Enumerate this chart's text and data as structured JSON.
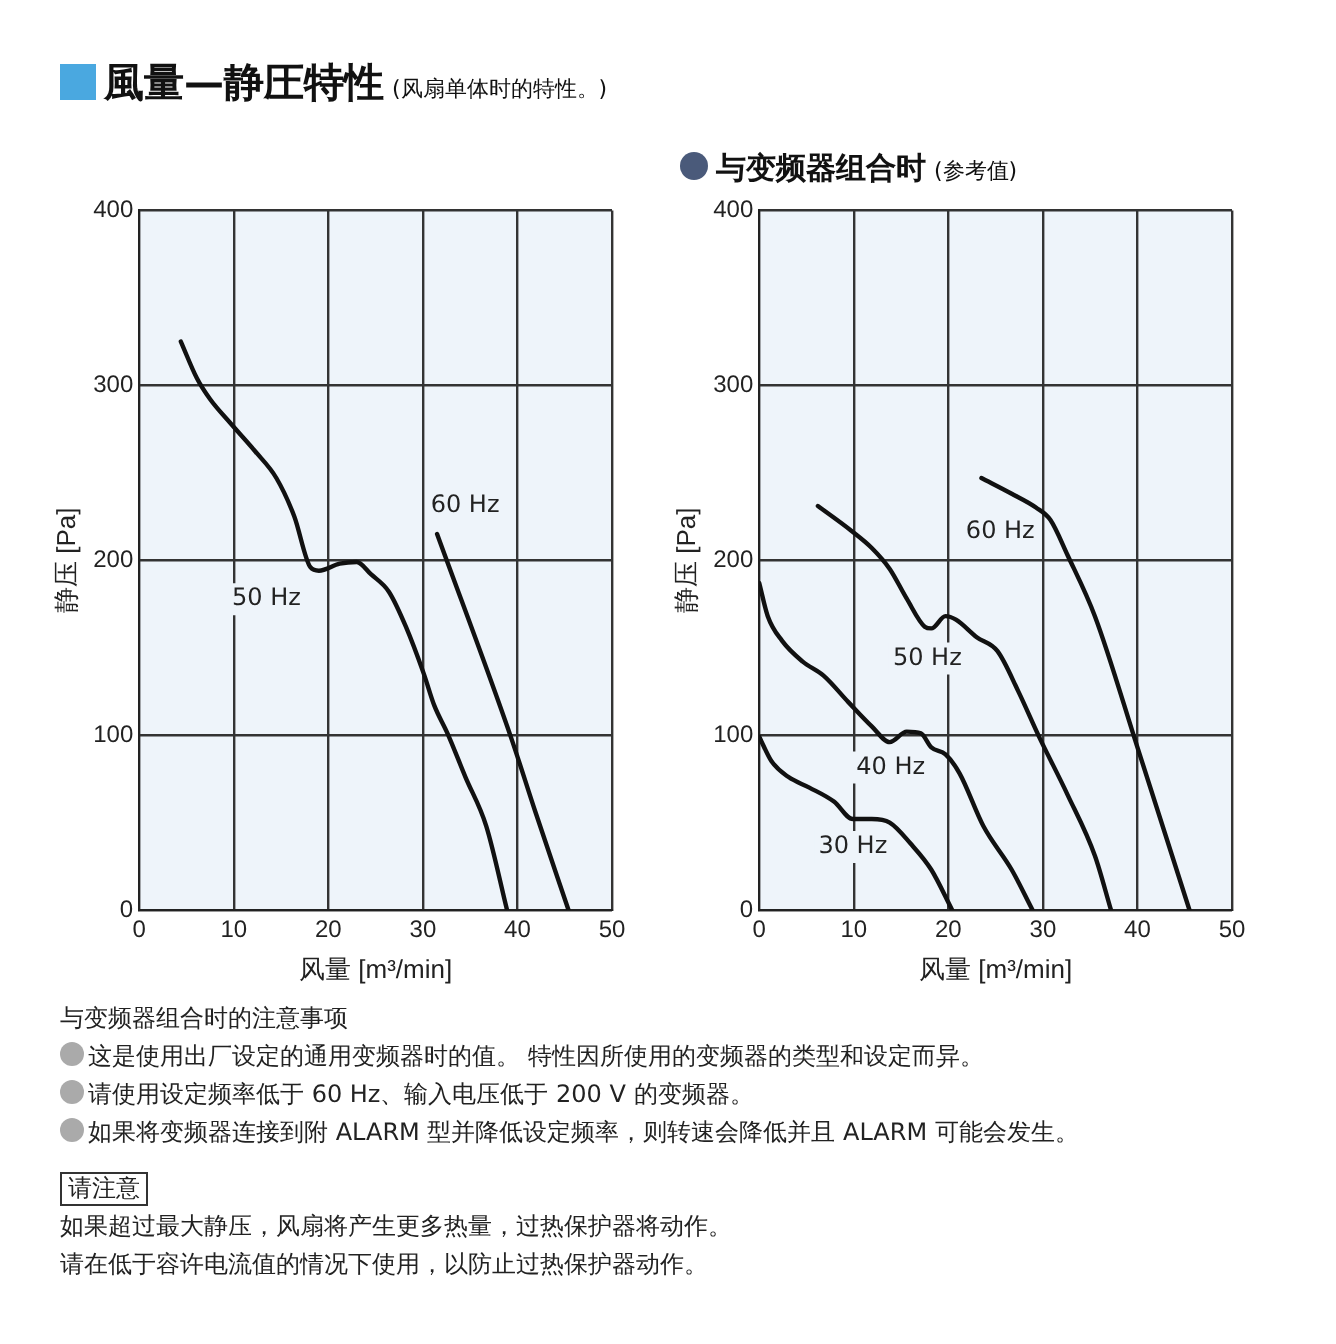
{
  "chart_data": [
    {
      "type": "line",
      "title": "風量—静圧特性",
      "subtitle": "(风扇单体时的特性。)",
      "xlabel": "风量 [m³/min]",
      "ylabel": "静压 [Pa]",
      "xlim": [
        0,
        50
      ],
      "xticks": [
        0,
        10,
        20,
        30,
        40,
        50
      ],
      "ylim": [
        0,
        400
      ],
      "yticks": [
        0,
        100,
        200,
        300,
        400
      ],
      "grid": true,
      "legend": false,
      "marker": "none",
      "line_style": "solid",
      "series": [
        {
          "name": "50 Hz",
          "color": "#111111",
          "x": [
            4.4,
            6.1,
            7.5,
            9.7,
            12.3,
            14.5,
            16.4,
            18.1,
            19.0,
            21.2,
            23.0,
            24.5,
            26.4,
            28.2,
            30.1,
            31.2,
            32.6,
            34.5,
            36.7,
            38.9
          ],
          "values": [
            325,
            304,
            292,
            278,
            262,
            247,
            225,
            196,
            194,
            198,
            199,
            192,
            182,
            162,
            135,
            117,
            101,
            76,
            48,
            0
          ]
        },
        {
          "name": "60 Hz",
          "color": "#111111",
          "x": [
            31.5,
            39.3,
            41.9,
            45.4
          ],
          "values": [
            215,
            99,
            56,
            0
          ]
        }
      ]
    },
    {
      "type": "line",
      "title": "与变频器组合时",
      "subtitle": "(参考值)",
      "xlabel": "风量 [m³/min]",
      "ylabel": "静压 [Pa]",
      "xlim": [
        0,
        50
      ],
      "xticks": [
        0,
        10,
        20,
        30,
        40,
        50
      ],
      "ylim": [
        0,
        400
      ],
      "yticks": [
        0,
        100,
        200,
        300,
        400
      ],
      "grid": true,
      "legend": false,
      "marker": "none",
      "line_style": "solid",
      "series": [
        {
          "name": "60 Hz",
          "color": "#111111",
          "x": [
            23.5,
            26.7,
            29.3,
            30.8,
            32.6,
            35.5,
            40.0,
            45.5
          ],
          "values": [
            247,
            238,
            230,
            223,
            203,
            168,
            93,
            0
          ]
        },
        {
          "name": "50 Hz",
          "color": "#111111",
          "x": [
            6.2,
            9.7,
            11.9,
            13.8,
            15.6,
            17.5,
            18.2,
            19.7,
            20.8,
            23.0,
            25.2,
            27.4,
            29.6,
            32.6,
            35.5,
            37.2
          ],
          "values": [
            231,
            217,
            207,
            195,
            178,
            162,
            161,
            168,
            166,
            156,
            148,
            125,
            99,
            66,
            31,
            0
          ]
        },
        {
          "name": "40 Hz",
          "color": "#111111",
          "x": [
            0,
            0.9,
            2.4,
            4.6,
            6.8,
            9.4,
            11.9,
            13.8,
            15.6,
            17.1,
            18.2,
            19.7,
            21.2,
            23.7,
            26.7,
            28.9
          ],
          "values": [
            187,
            168,
            154,
            142,
            134,
            119,
            105,
            96,
            102,
            101,
            93,
            89,
            78,
            48,
            23,
            0
          ]
        },
        {
          "name": "30 Hz",
          "color": "#111111",
          "x": [
            0,
            1.3,
            3.1,
            5.3,
            7.9,
            9.9,
            11.9,
            13.8,
            16.0,
            18.2,
            20.4
          ],
          "values": [
            99,
            85,
            76,
            70,
            62,
            52,
            52,
            50,
            38,
            23,
            0
          ]
        }
      ],
      "annotations": [
        "与变频器组合时的注意事项",
        "这是使用出厂设定的通用变频器时的值。 特性因所使用的变频器的类型和设定而异。",
        "请使用设定频率低于 60 Hz、输入电压低于 200 V 的变频器。",
        "如果将变频器连接到附 ALARM 型并降低设定频率，则转速会降低并且 ALARM 可能会发生。",
        "请注意",
        "如果超过最大静压，风扇将产生更多热量，过热保护器将动作。",
        "请在低于容许电流值的情况下使用，以防止过热保护器动作。"
      ]
    }
  ]
}
